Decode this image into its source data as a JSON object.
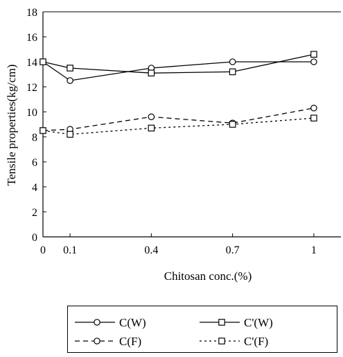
{
  "chart_data": {
    "type": "line",
    "title": "",
    "xlabel": "Chitosan conc.(%)",
    "ylabel": "Tensile properties(kg/cm)",
    "x": [
      0,
      0.1,
      0.4,
      0.7,
      1.0
    ],
    "x_tick_labels": [
      "0",
      "0.1",
      "0.4",
      "0.7",
      "1"
    ],
    "y_ticks": [
      0,
      2,
      4,
      6,
      8,
      10,
      12,
      14,
      16,
      18
    ],
    "xlim": [
      0,
      1.1
    ],
    "ylim": [
      0,
      18
    ],
    "grid": false,
    "legend_position": "bottom",
    "series": [
      {
        "name": "C(W)",
        "marker": "circle",
        "line": "solid",
        "values": [
          14.0,
          12.5,
          13.5,
          14.0,
          14.0
        ]
      },
      {
        "name": "C'(W)",
        "marker": "square",
        "line": "solid",
        "values": [
          14.0,
          13.5,
          13.1,
          13.2,
          14.6
        ]
      },
      {
        "name": "C(F)",
        "marker": "circle",
        "line": "dashed",
        "values": [
          8.5,
          8.6,
          9.6,
          9.1,
          10.3
        ]
      },
      {
        "name": "C'(F)",
        "marker": "square",
        "line": "dotted",
        "values": [
          8.5,
          8.2,
          8.7,
          9.0,
          9.5
        ]
      }
    ],
    "colors": {
      "axis": "#000000",
      "series": "#000000",
      "background": "#ffffff"
    }
  }
}
